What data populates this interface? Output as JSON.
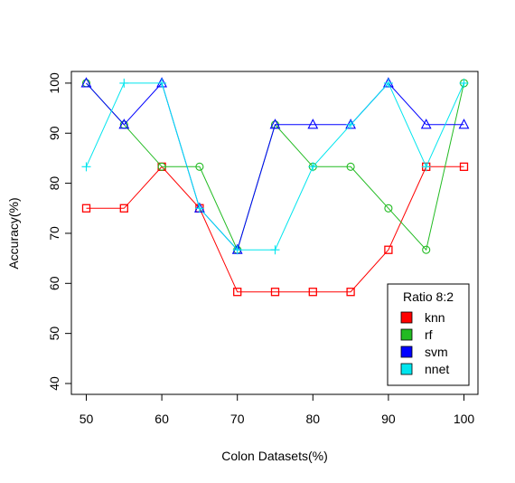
{
  "chart_data": {
    "type": "line",
    "xlabel": "Colon Datasets(%)",
    "ylabel": "Accuracy(%)",
    "xlim": [
      50,
      100
    ],
    "ylim": [
      40,
      100
    ],
    "x": [
      50,
      55,
      60,
      65,
      70,
      75,
      80,
      85,
      90,
      95,
      100
    ],
    "x_ticks": [
      50,
      60,
      70,
      80,
      90,
      100
    ],
    "y_ticks": [
      40,
      50,
      60,
      70,
      80,
      90,
      100
    ],
    "grid": false,
    "legend": {
      "title": "Ratio 8:2",
      "placement": "bottom-right"
    },
    "series": [
      {
        "name": "knn",
        "color": "#ff0000",
        "marker": "square",
        "values": [
          75,
          75,
          83.3,
          75,
          58.3,
          58.3,
          58.3,
          58.3,
          66.7,
          83.3,
          83.3
        ]
      },
      {
        "name": "rf",
        "color": "#22bb22",
        "marker": "circle",
        "values": [
          100,
          91.7,
          83.3,
          83.3,
          66.7,
          91.7,
          83.3,
          83.3,
          75,
          66.7,
          100
        ]
      },
      {
        "name": "svm",
        "color": "#0000ff",
        "marker": "triangle",
        "values": [
          100,
          91.7,
          100,
          75,
          66.7,
          91.7,
          91.7,
          91.7,
          100,
          91.7,
          91.7
        ]
      },
      {
        "name": "nnet",
        "color": "#00e5ee",
        "marker": "plus",
        "values": [
          83.3,
          100,
          100,
          75,
          66.7,
          66.7,
          83.3,
          91.7,
          100,
          83.3,
          100
        ]
      }
    ]
  }
}
